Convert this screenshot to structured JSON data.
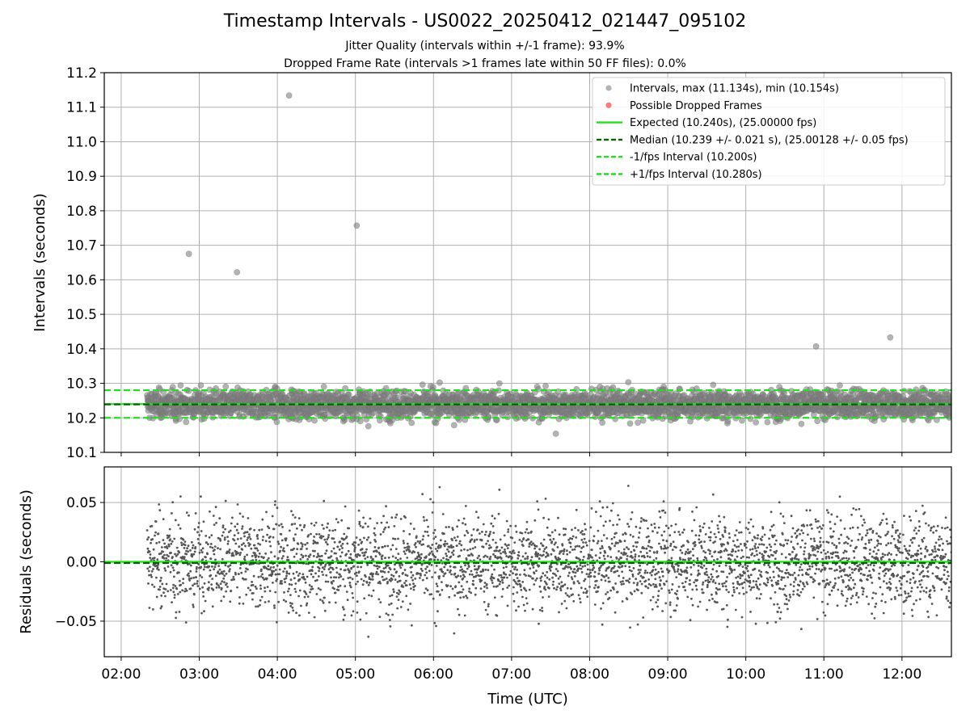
{
  "figure": {
    "title": "Timestamp Intervals - US0022_20250412_021447_095102",
    "subtitle_1": "Jitter Quality (intervals within +/-1 frame): 93.9%",
    "subtitle_2": "Dropped Frame Rate (intervals >1 frames late within 50 FF files): 0.0%"
  },
  "colors": {
    "points": "#808080",
    "dropped": "#ff4040",
    "expected": "#20e020",
    "median": "#006400",
    "bounds": "#20e020",
    "grid": "#b0b0b0",
    "background": "#ffffff"
  },
  "chart_data": [
    {
      "type": "scatter",
      "panel": "intervals",
      "xlabel": "Time (UTC)",
      "ylabel": "Intervals (seconds)",
      "xlim": [
        "01:47",
        "12:38"
      ],
      "ylim": [
        10.1,
        11.2
      ],
      "x_ticks": [
        "02:00",
        "03:00",
        "04:00",
        "05:00",
        "06:00",
        "07:00",
        "08:00",
        "09:00",
        "10:00",
        "11:00",
        "12:00"
      ],
      "y_ticks": [
        "10.1",
        "10.2",
        "10.3",
        "10.4",
        "10.5",
        "10.6",
        "10.7",
        "10.8",
        "10.9",
        "11.0",
        "11.1",
        "11.2"
      ],
      "grid": true,
      "legend_position": "top-right",
      "legend": [
        "Intervals, max (11.134s), min (10.154s)",
        "Possible Dropped Frames",
        "Expected (10.240s), (25.00000 fps)",
        "Median (10.239 +/- 0.021 s), (25.00128 +/- 0.05 fps)",
        "-1/fps Interval (10.200s)",
        "+1/fps Interval (10.280s)"
      ],
      "series": [
        {
          "name": "Intervals, max (11.134s), min (10.154s)",
          "x_range": [
            "02:20",
            "12:38"
          ],
          "count": 3620,
          "median": 10.239,
          "std": 0.021,
          "notable_points": [
            {
              "x": "04:09",
              "y": 11.134
            },
            {
              "x": "05:01",
              "y": 10.757
            },
            {
              "x": "02:52",
              "y": 10.675
            },
            {
              "x": "03:29",
              "y": 10.622
            },
            {
              "x": "11:51",
              "y": 10.433
            },
            {
              "x": "10:54",
              "y": 10.407
            },
            {
              "x": "07:34",
              "y": 10.154
            }
          ]
        },
        {
          "name": "Possible Dropped Frames",
          "points": []
        },
        {
          "name": "Expected (10.240s), (25.00000 fps)",
          "y": 10.24
        },
        {
          "name": "Median (10.239 +/- 0.021 s), (25.00128 +/- 0.05 fps)",
          "y": 10.239
        },
        {
          "name": "-1/fps Interval (10.200s)",
          "y": 10.2
        },
        {
          "name": "+1/fps Interval (10.280s)",
          "y": 10.28
        }
      ]
    },
    {
      "type": "scatter",
      "panel": "residuals",
      "xlabel": "Time (UTC)",
      "ylabel": "Residuals (seconds)",
      "xlim": [
        "01:47",
        "12:38"
      ],
      "ylim": [
        -0.08,
        0.08
      ],
      "x_ticks": [
        "02:00",
        "03:00",
        "04:00",
        "05:00",
        "06:00",
        "07:00",
        "08:00",
        "09:00",
        "10:00",
        "11:00",
        "12:00"
      ],
      "y_ticks": [
        "0.05",
        "0.00",
        "−0.05"
      ],
      "grid": true,
      "series": [
        {
          "name": "Residuals",
          "x_range": [
            "02:20",
            "12:38"
          ],
          "std": 0.021
        },
        {
          "name": "Expected",
          "y": 0.0
        },
        {
          "name": "Median",
          "y": -0.001
        }
      ]
    }
  ]
}
